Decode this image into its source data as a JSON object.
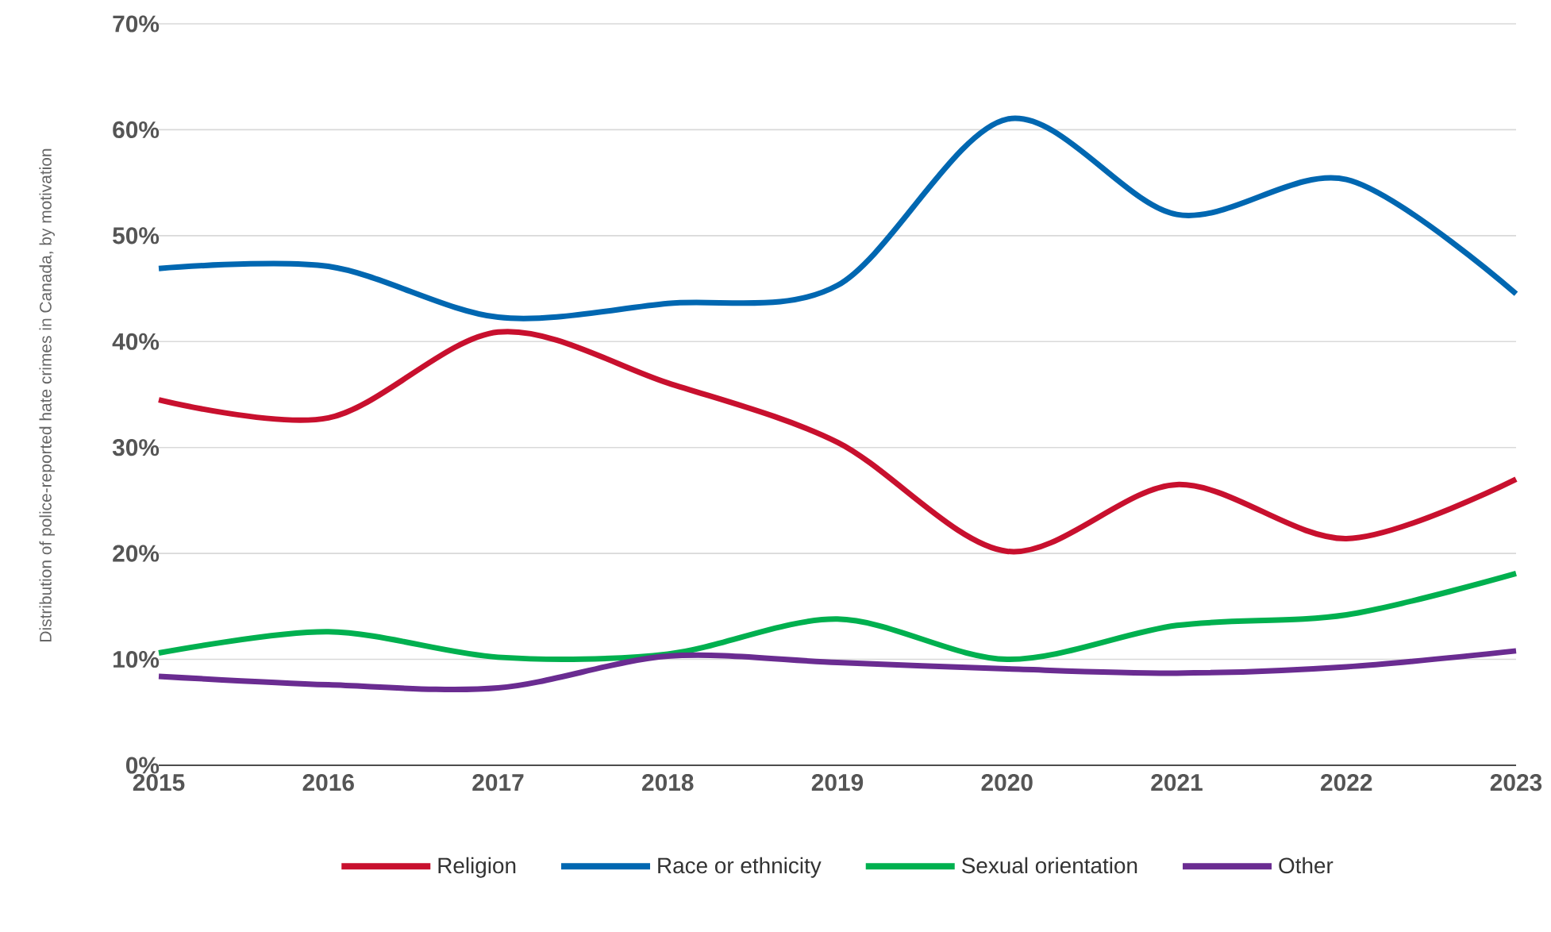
{
  "chart_data": {
    "type": "line",
    "ylabel": "Distribution of police-reported hate crimes in Canada, by motivation",
    "x": [
      2015,
      2016,
      2017,
      2018,
      2019,
      2020,
      2021,
      2022,
      2023
    ],
    "xlim": [
      2015,
      2023
    ],
    "xticks": [
      2015,
      2016,
      2017,
      2018,
      2019,
      2020,
      2021,
      2022,
      2023
    ],
    "ylim": [
      0,
      70
    ],
    "yticks": [
      {
        "value": 0,
        "label": "0%"
      },
      {
        "value": 10,
        "label": "10%"
      },
      {
        "value": 20,
        "label": "20%"
      },
      {
        "value": 30,
        "label": "30%"
      },
      {
        "value": 40,
        "label": "40%"
      },
      {
        "value": 50,
        "label": "50%"
      },
      {
        "value": 60,
        "label": "60%"
      },
      {
        "value": 70,
        "label": "70%"
      }
    ],
    "grid": "y",
    "legend": "bottom",
    "marker": "none",
    "line_style": "solid",
    "series": [
      {
        "name": "Religion",
        "color": "#c8102e",
        "values": [
          34.5,
          32.8,
          40.9,
          36.1,
          30.5,
          20.2,
          26.5,
          21.4,
          27.0
        ]
      },
      {
        "name": "Race or ethnicity",
        "color": "#0067b1",
        "values": [
          46.9,
          47.1,
          42.3,
          43.6,
          45.3,
          61.0,
          52.0,
          55.3,
          44.5
        ]
      },
      {
        "name": "Sexual orientation",
        "color": "#00b04f",
        "values": [
          10.6,
          12.6,
          10.2,
          10.5,
          13.8,
          10.0,
          13.2,
          14.2,
          18.1
        ]
      },
      {
        "name": "Other",
        "color": "#6a2c91",
        "values": [
          8.4,
          7.6,
          7.3,
          10.3,
          9.7,
          9.1,
          8.7,
          9.3,
          10.8
        ]
      }
    ]
  }
}
